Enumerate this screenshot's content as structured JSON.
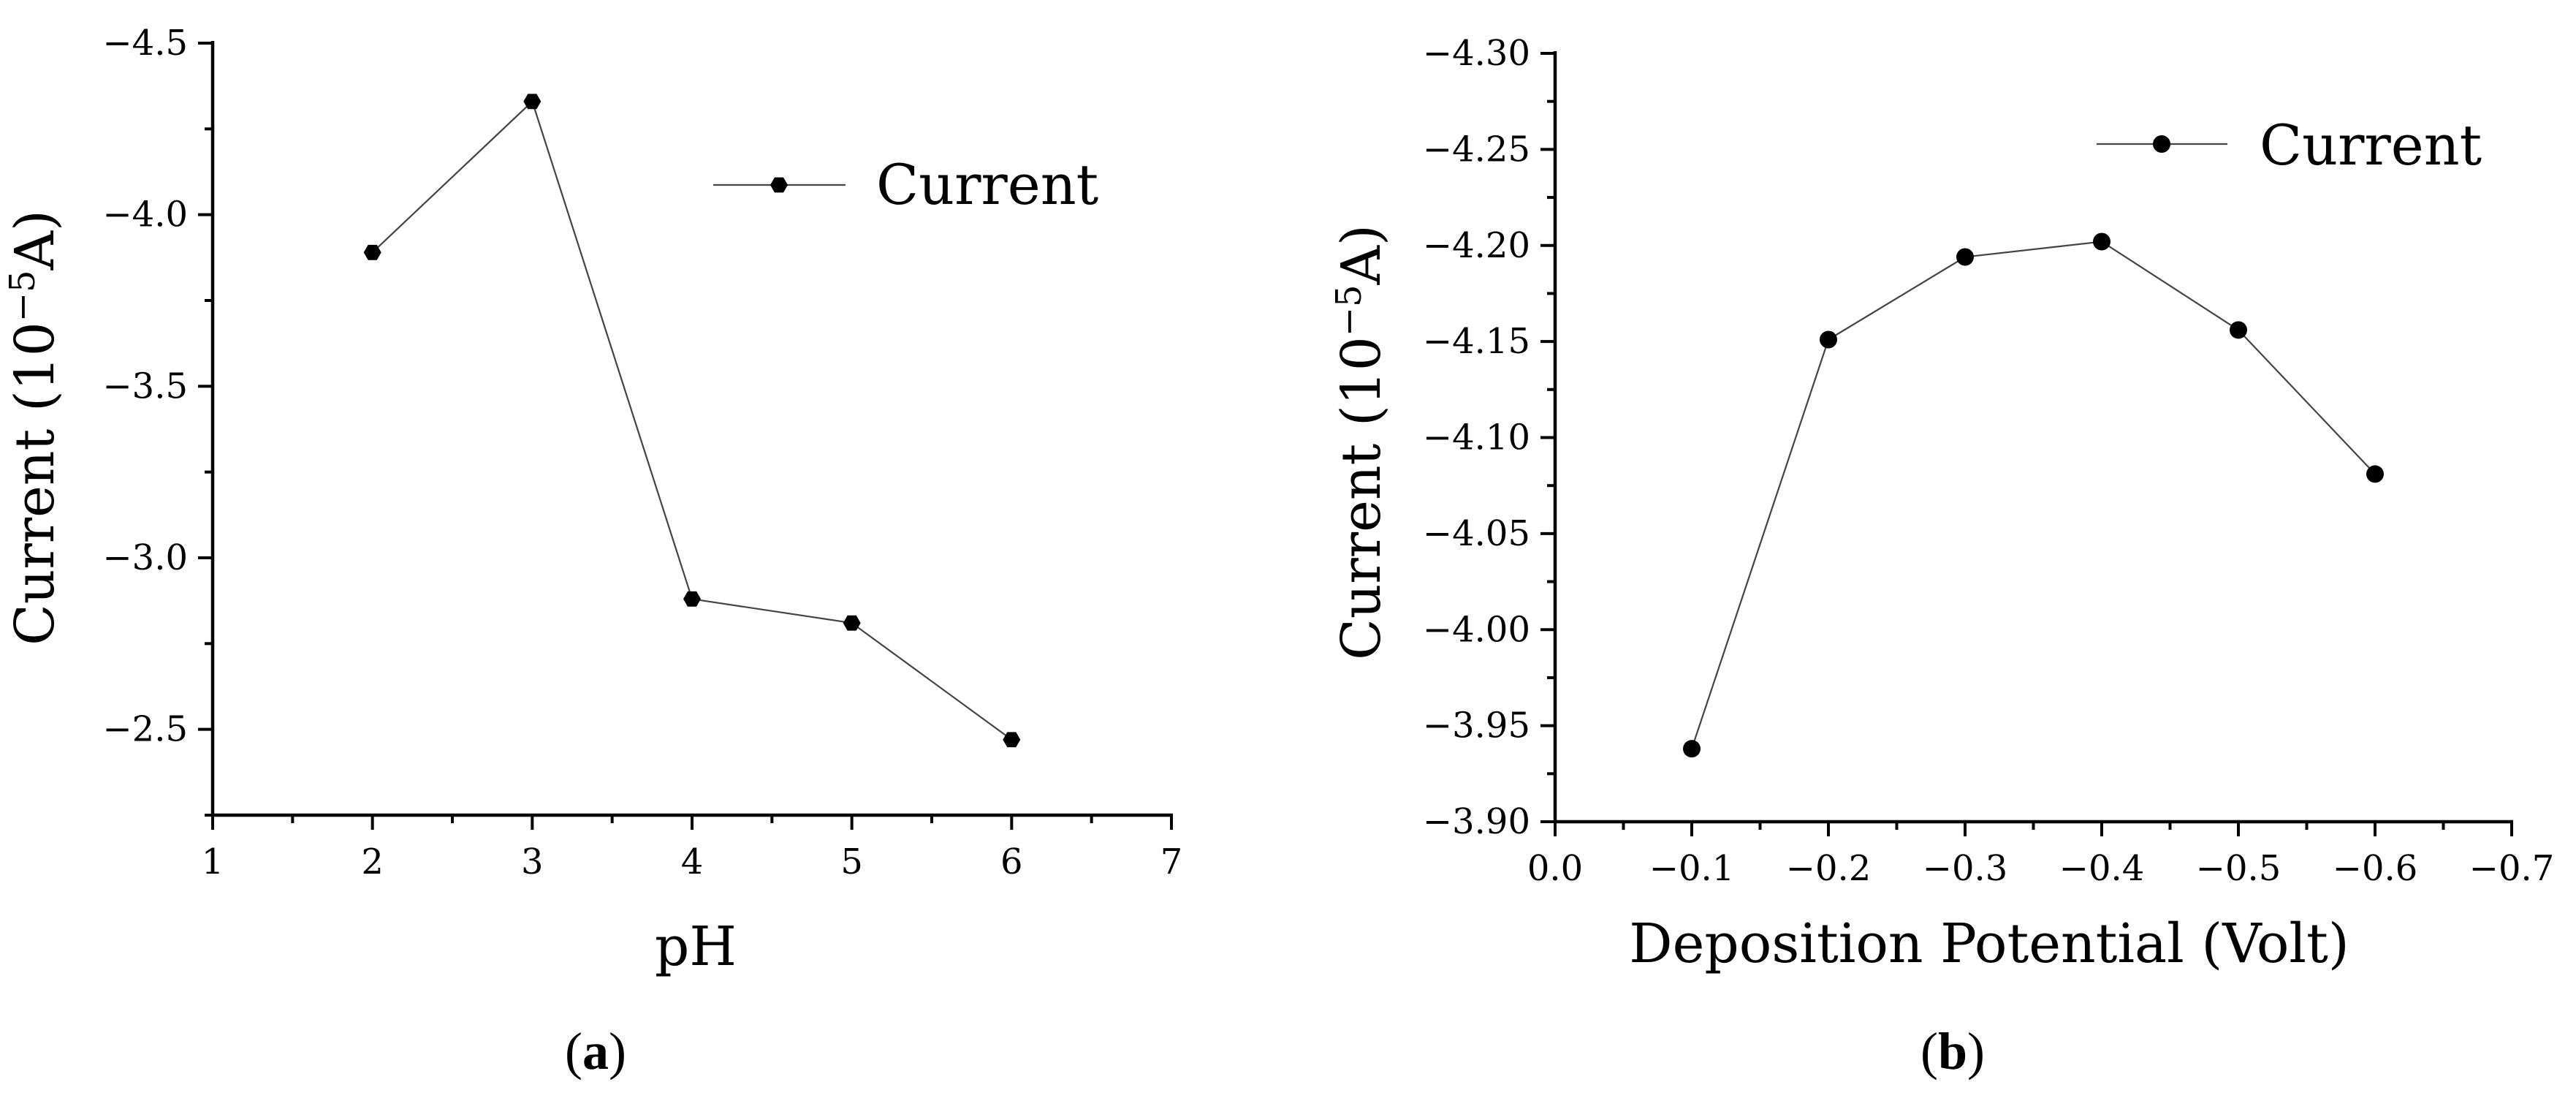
{
  "chart_data": [
    {
      "type": "line",
      "panel_label": {
        "open": "(",
        "letter": "a",
        "close": ")"
      },
      "x": [
        2,
        3,
        4,
        5,
        6
      ],
      "series": [
        {
          "name": "Current",
          "values": [
            -3.89,
            -4.33,
            -2.88,
            -2.81,
            -2.47
          ],
          "marker": "hexagon",
          "color": "#000000"
        }
      ],
      "xlabel": "pH",
      "ylabel": {
        "text": "Current (10",
        "sup": "−5",
        "unit": "A)"
      },
      "xlim": [
        1,
        7
      ],
      "ylim": [
        -2.25,
        -4.5
      ],
      "y_reversed": true,
      "xticks": [
        1,
        2,
        3,
        4,
        5,
        6,
        7
      ],
      "xtick_labels": [
        "1",
        "2",
        "3",
        "4",
        "5",
        "6",
        "7"
      ],
      "yticks": [
        -2.5,
        -3.0,
        -3.5,
        -4.0,
        -4.5
      ],
      "ytick_labels": [
        "−2.5",
        "−3.0",
        "−3.5",
        "−4.0",
        "−4.5"
      ],
      "legend": {
        "position": "top-right",
        "entries": [
          "Current"
        ]
      },
      "grid": false
    },
    {
      "type": "line",
      "panel_label": {
        "open": "(",
        "letter": "b",
        "close": ")"
      },
      "x": [
        -0.1,
        -0.2,
        -0.3,
        -0.4,
        -0.5,
        -0.6
      ],
      "series": [
        {
          "name": "Current",
          "values": [
            -3.938,
            -4.151,
            -4.194,
            -4.202,
            -4.156,
            -4.081
          ],
          "marker": "circle",
          "color": "#000000"
        }
      ],
      "xlabel": "Deposition Potential (Volt)",
      "ylabel": {
        "text": "Current (10",
        "sup": "−5",
        "unit": "A)"
      },
      "xlim": [
        0.0,
        -0.7
      ],
      "x_reversed": true,
      "ylim": [
        -3.9,
        -4.3
      ],
      "y_reversed": true,
      "xticks": [
        0.0,
        -0.1,
        -0.2,
        -0.3,
        -0.4,
        -0.5,
        -0.6,
        -0.7
      ],
      "xtick_labels": [
        "0.0",
        "−0.1",
        "−0.2",
        "−0.3",
        "−0.4",
        "−0.5",
        "−0.6",
        "−0.7"
      ],
      "yticks": [
        -3.9,
        -3.95,
        -4.0,
        -4.05,
        -4.1,
        -4.15,
        -4.2,
        -4.25,
        -4.3
      ],
      "ytick_labels": [
        "−3.90",
        "−3.95",
        "−4.00",
        "−4.05",
        "−4.10",
        "−4.15",
        "−4.20",
        "−4.25",
        "−4.30"
      ],
      "legend": {
        "position": "top-right",
        "entries": [
          "Current"
        ]
      },
      "grid": false
    }
  ]
}
